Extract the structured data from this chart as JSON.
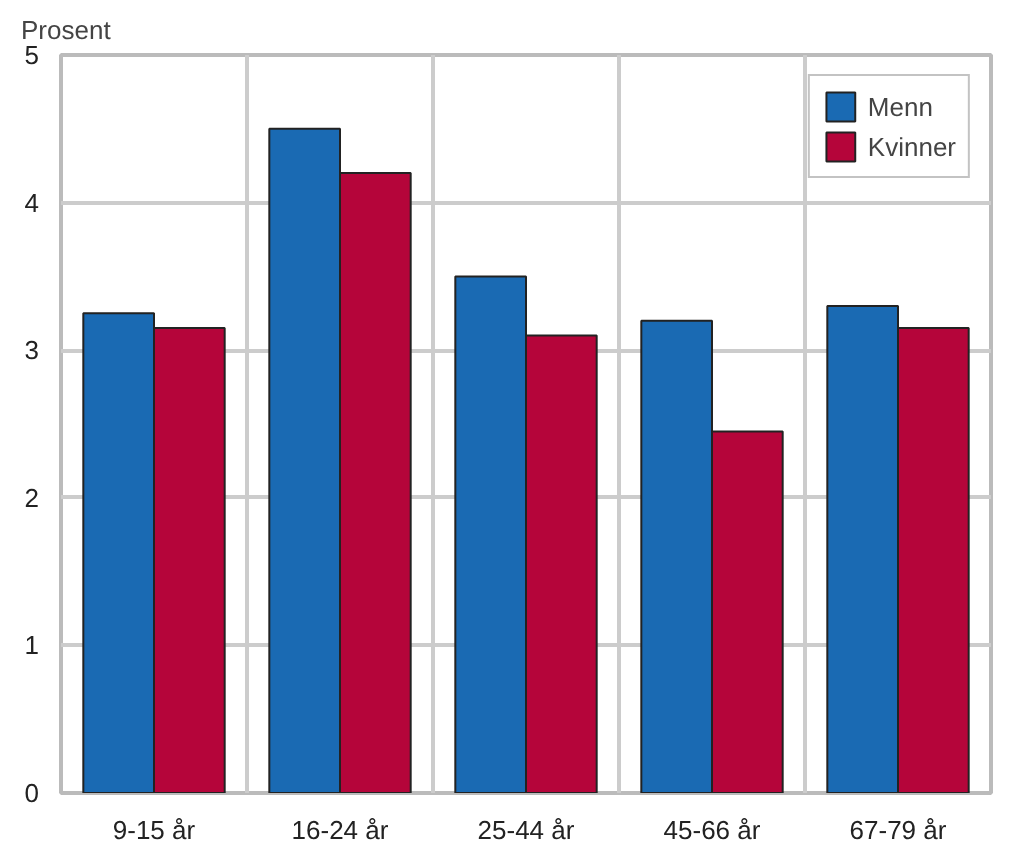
{
  "chart_data": {
    "type": "bar",
    "ylabel": "Prosent",
    "categories": [
      "9-15 år",
      "16-24 år",
      "25-44 år",
      "45-66 år",
      "67-79 år"
    ],
    "series": [
      {
        "name": "Menn",
        "color": "#1a6ab3",
        "values": [
          3.25,
          4.5,
          3.5,
          3.2,
          3.3
        ]
      },
      {
        "name": "Kvinner",
        "color": "#b5053a",
        "values": [
          3.15,
          4.2,
          3.1,
          2.45,
          3.15
        ]
      }
    ],
    "ylim": [
      0,
      5
    ],
    "yticks": [
      0,
      1,
      2,
      3,
      4,
      5
    ],
    "grid": true,
    "legend": "top right"
  }
}
